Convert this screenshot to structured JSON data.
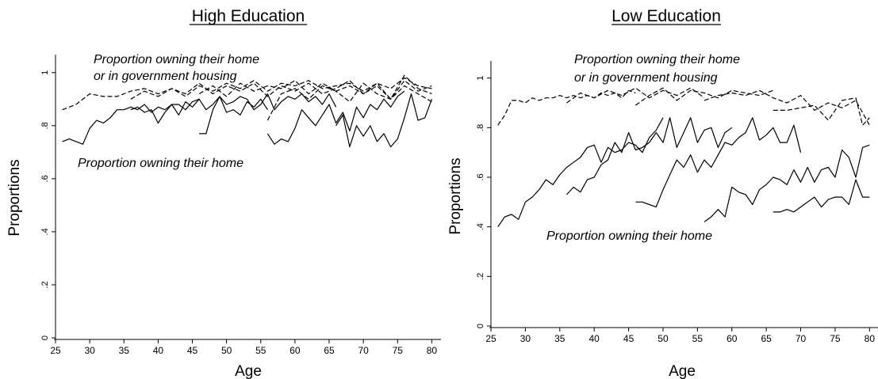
{
  "chart_data": [
    {
      "type": "line",
      "title": "High Education",
      "xlabel": "Age",
      "ylabel": "Proportions",
      "xlim": [
        25,
        81
      ],
      "ylim": [
        0,
        1.05
      ],
      "x_ticks": [
        25,
        30,
        35,
        40,
        45,
        50,
        55,
        60,
        65,
        70,
        75,
        80
      ],
      "y_ticks": [
        0,
        0.2,
        0.4,
        0.6,
        0.8,
        1
      ],
      "y_tick_labels": [
        "0",
        ".2",
        ".4",
        ".6",
        ".8",
        "1"
      ],
      "grid": false,
      "annotations": [
        {
          "text": "Proportion owning their home",
          "x": 29,
          "y": 1.01
        },
        {
          "text": "or in government housing",
          "x": 29,
          "y": 0.96
        },
        {
          "text": "Proportion owning their home",
          "x": 27,
          "y": 0.69
        }
      ],
      "series": [
        {
          "style": "dashed",
          "x": [
            26,
            28,
            30,
            32,
            34,
            36,
            38,
            40,
            42,
            44,
            46,
            48,
            50,
            52,
            54,
            56,
            58,
            60,
            62,
            64,
            66,
            68,
            70,
            72,
            74,
            76,
            78,
            80
          ],
          "y": [
            0.86,
            0.88,
            0.92,
            0.91,
            0.91,
            0.93,
            0.94,
            0.92,
            0.94,
            0.91,
            0.95,
            0.93,
            0.96,
            0.94,
            0.97,
            0.93,
            0.96,
            0.95,
            0.97,
            0.94,
            0.95,
            0.96,
            0.93,
            0.96,
            0.94,
            0.98,
            0.95,
            0.94
          ]
        },
        {
          "style": "dashed",
          "x": [
            36,
            38,
            40,
            42,
            44,
            46,
            48,
            50,
            52,
            54,
            56,
            58,
            60,
            62,
            64,
            66,
            68,
            70,
            72,
            74,
            76,
            78,
            80
          ],
          "y": [
            0.9,
            0.93,
            0.91,
            0.94,
            0.92,
            0.96,
            0.92,
            0.95,
            0.93,
            0.96,
            0.91,
            0.95,
            0.93,
            0.96,
            0.92,
            0.94,
            0.97,
            0.92,
            0.95,
            0.9,
            0.97,
            0.93,
            0.95
          ]
        },
        {
          "style": "dashed",
          "x": [
            46,
            48,
            50,
            52,
            54,
            56,
            58,
            60,
            62,
            64,
            66,
            68,
            70,
            72,
            74,
            76,
            78,
            80
          ],
          "y": [
            0.92,
            0.95,
            0.91,
            0.96,
            0.93,
            0.95,
            0.94,
            0.97,
            0.92,
            0.96,
            0.93,
            0.95,
            0.92,
            0.96,
            0.9,
            0.99,
            0.94,
            0.92
          ]
        },
        {
          "style": "dashed",
          "x": [
            56,
            58,
            60,
            62,
            64,
            66,
            68,
            70,
            72,
            74,
            76,
            78,
            80
          ],
          "y": [
            0.82,
            0.92,
            0.94,
            0.9,
            0.95,
            0.93,
            0.89,
            0.96,
            0.92,
            0.9,
            0.95,
            0.92,
            0.89
          ]
        },
        {
          "style": "solid",
          "x": [
            26,
            27,
            28,
            29,
            30,
            31,
            32,
            33,
            34,
            35,
            36,
            37,
            38,
            39,
            40,
            41,
            42,
            43,
            44,
            45,
            46
          ],
          "y": [
            0.74,
            0.75,
            0.74,
            0.73,
            0.79,
            0.82,
            0.81,
            0.83,
            0.86,
            0.86,
            0.87,
            0.86,
            0.88,
            0.85,
            0.87,
            0.86,
            0.88,
            0.88,
            0.86,
            0.89,
            0.9
          ]
        },
        {
          "style": "solid",
          "x": [
            36,
            37,
            38,
            39,
            40,
            41,
            42,
            43,
            44,
            45,
            46,
            47,
            48,
            49,
            50,
            51,
            52,
            53,
            54,
            55,
            56
          ],
          "y": [
            0.86,
            0.87,
            0.85,
            0.86,
            0.81,
            0.85,
            0.88,
            0.84,
            0.89,
            0.87,
            0.9,
            0.86,
            0.88,
            0.91,
            0.85,
            0.86,
            0.84,
            0.89,
            0.87,
            0.9,
            0.86
          ]
        },
        {
          "style": "solid",
          "x": [
            46,
            47,
            48,
            49,
            50,
            51,
            52,
            53,
            54,
            55,
            56,
            57,
            58,
            59,
            60,
            61,
            62,
            63,
            64,
            65,
            66
          ],
          "y": [
            0.77,
            0.77,
            0.86,
            0.91,
            0.88,
            0.89,
            0.91,
            0.9,
            0.86,
            0.88,
            0.92,
            0.86,
            0.89,
            0.91,
            0.9,
            0.92,
            0.89,
            0.91,
            0.88,
            0.92,
            0.87
          ]
        },
        {
          "style": "solid",
          "x": [
            56,
            57,
            58,
            59,
            60,
            61,
            62,
            63,
            64,
            65,
            66,
            67,
            68,
            69,
            70,
            71,
            72,
            73,
            74,
            75,
            76
          ],
          "y": [
            0.77,
            0.73,
            0.75,
            0.74,
            0.79,
            0.86,
            0.83,
            0.8,
            0.84,
            0.88,
            0.81,
            0.85,
            0.78,
            0.87,
            0.83,
            0.88,
            0.86,
            0.9,
            0.87,
            0.91,
            0.93
          ]
        },
        {
          "style": "solid",
          "x": [
            66,
            67,
            68,
            69,
            70,
            71,
            72,
            73,
            74,
            75,
            76,
            77,
            78,
            79,
            80
          ],
          "y": [
            0.8,
            0.84,
            0.72,
            0.8,
            0.76,
            0.8,
            0.74,
            0.77,
            0.72,
            0.75,
            0.83,
            0.92,
            0.82,
            0.83,
            0.9
          ]
        }
      ]
    },
    {
      "type": "line",
      "title": "Low Education",
      "xlabel": "Age",
      "ylabel": "Proportions",
      "xlim": [
        25,
        81
      ],
      "ylim": [
        0,
        1.05
      ],
      "x_ticks": [
        25,
        30,
        35,
        40,
        45,
        50,
        55,
        60,
        65,
        70,
        75,
        80
      ],
      "y_ticks": [
        0,
        0.2,
        0.4,
        0.6,
        0.8,
        1
      ],
      "y_tick_labels": [
        "0",
        ".2",
        ".4",
        ".6",
        ".8",
        "1"
      ],
      "grid": false,
      "annotations": [
        {
          "text": "Proportion owning their home",
          "x": 36,
          "y": 1.0
        },
        {
          "text": "or in government housing",
          "x": 36,
          "y": 0.95
        },
        {
          "text": "Proportion owning their home",
          "x": 33,
          "y": 0.35
        }
      ],
      "series": [
        {
          "style": "dashed",
          "x": [
            26,
            27,
            28,
            29,
            30,
            31,
            32,
            33,
            34,
            35,
            36,
            37,
            38,
            39,
            40,
            41,
            42,
            43,
            44,
            45,
            46
          ],
          "y": [
            0.81,
            0.85,
            0.91,
            0.91,
            0.9,
            0.92,
            0.91,
            0.92,
            0.92,
            0.93,
            0.92,
            0.93,
            0.92,
            0.93,
            0.92,
            0.94,
            0.93,
            0.94,
            0.92,
            0.95,
            0.94
          ]
        },
        {
          "style": "dashed",
          "x": [
            36,
            38,
            40,
            42,
            44,
            46,
            48,
            50,
            52,
            54,
            56
          ],
          "y": [
            0.9,
            0.94,
            0.92,
            0.95,
            0.93,
            0.96,
            0.92,
            0.95,
            0.93,
            0.96,
            0.92
          ]
        },
        {
          "style": "dashed",
          "x": [
            46,
            48,
            50,
            52,
            54,
            56,
            58,
            60,
            62,
            64,
            66
          ],
          "y": [
            0.89,
            0.93,
            0.96,
            0.91,
            0.95,
            0.94,
            0.92,
            0.95,
            0.94,
            0.93,
            0.95
          ]
        },
        {
          "style": "dashed",
          "x": [
            56,
            58,
            60,
            62,
            64,
            66,
            68,
            70,
            72,
            74,
            76,
            78,
            80
          ],
          "y": [
            0.91,
            0.93,
            0.94,
            0.93,
            0.95,
            0.92,
            0.9,
            0.93,
            0.87,
            0.9,
            0.88,
            0.91,
            0.81
          ]
        },
        {
          "style": "dashed",
          "x": [
            66,
            68,
            70,
            72,
            74,
            76,
            78,
            79,
            80
          ],
          "y": [
            0.87,
            0.87,
            0.88,
            0.89,
            0.83,
            0.91,
            0.92,
            0.81,
            0.84
          ]
        },
        {
          "style": "solid",
          "x": [
            26,
            27,
            28,
            29,
            30,
            31,
            32,
            33,
            34,
            35,
            36,
            37,
            38,
            39,
            40,
            41,
            42,
            43,
            44,
            45,
            46,
            47,
            48,
            49,
            50
          ],
          "y": [
            0.4,
            0.44,
            0.45,
            0.43,
            0.5,
            0.52,
            0.55,
            0.59,
            0.57,
            0.61,
            0.64,
            0.66,
            0.68,
            0.72,
            0.73,
            0.66,
            0.72,
            0.7,
            0.71,
            0.74,
            0.73,
            0.7,
            0.76,
            0.79,
            0.84
          ]
        },
        {
          "style": "solid",
          "x": [
            36,
            37,
            38,
            39,
            40,
            41,
            42,
            43,
            44,
            45,
            46,
            47,
            48,
            49,
            50,
            51,
            52,
            53,
            54,
            55,
            56,
            57,
            58,
            59,
            60
          ],
          "y": [
            0.53,
            0.56,
            0.54,
            0.59,
            0.6,
            0.65,
            0.67,
            0.74,
            0.7,
            0.78,
            0.71,
            0.72,
            0.74,
            0.78,
            0.74,
            0.84,
            0.72,
            0.78,
            0.84,
            0.74,
            0.79,
            0.8,
            0.72,
            0.78,
            0.8
          ]
        },
        {
          "style": "solid",
          "x": [
            46,
            47,
            48,
            49,
            50,
            51,
            52,
            53,
            54,
            55,
            56,
            57,
            58,
            59,
            60,
            61,
            62,
            63,
            64,
            65,
            66,
            67,
            68,
            69,
            70
          ],
          "y": [
            0.5,
            0.5,
            0.49,
            0.48,
            0.55,
            0.61,
            0.67,
            0.64,
            0.69,
            0.62,
            0.67,
            0.64,
            0.69,
            0.74,
            0.73,
            0.76,
            0.78,
            0.84,
            0.75,
            0.77,
            0.8,
            0.74,
            0.74,
            0.81,
            0.7
          ]
        },
        {
          "style": "solid",
          "x": [
            56,
            57,
            58,
            59,
            60,
            61,
            62,
            63,
            64,
            65,
            66,
            67,
            68,
            69,
            70,
            71,
            72,
            73,
            74,
            75,
            76,
            77,
            78,
            79,
            80
          ],
          "y": [
            0.42,
            0.44,
            0.47,
            0.44,
            0.56,
            0.54,
            0.53,
            0.49,
            0.55,
            0.57,
            0.6,
            0.59,
            0.57,
            0.63,
            0.58,
            0.64,
            0.58,
            0.63,
            0.64,
            0.6,
            0.71,
            0.68,
            0.6,
            0.72,
            0.73
          ]
        },
        {
          "style": "solid",
          "x": [
            66,
            67,
            68,
            69,
            70,
            71,
            72,
            73,
            74,
            75,
            76,
            77,
            78,
            79,
            80
          ],
          "y": [
            0.46,
            0.46,
            0.47,
            0.46,
            0.48,
            0.5,
            0.52,
            0.48,
            0.51,
            0.52,
            0.52,
            0.49,
            0.59,
            0.52,
            0.52
          ]
        }
      ]
    }
  ]
}
